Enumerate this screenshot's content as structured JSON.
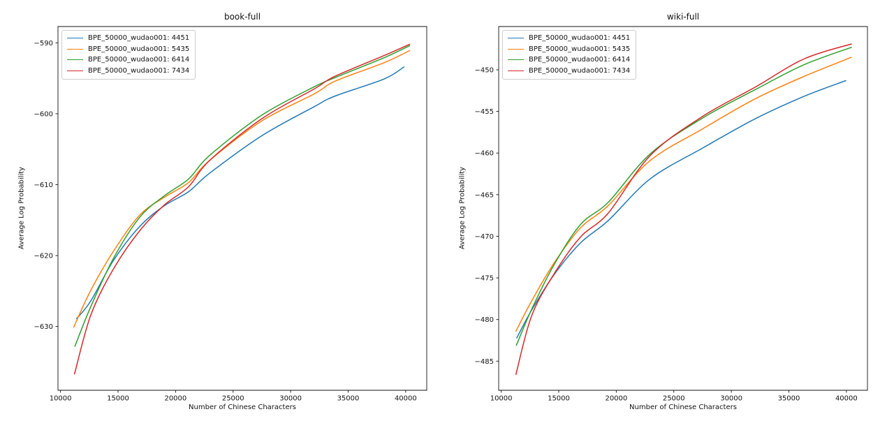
{
  "figure": {
    "background": "#ffffff"
  },
  "chart_data": [
    {
      "type": "line",
      "title": "book-full",
      "xlabel": "Number of Chinese Characters",
      "ylabel": "Average Log Probability",
      "xlim": [
        9780,
        41830
      ],
      "ylim": [
        -639.0,
        -587.7
      ],
      "xticks": [
        10000,
        15000,
        20000,
        25000,
        30000,
        35000,
        40000
      ],
      "yticks": [
        -590,
        -600,
        -610,
        -620,
        -630
      ],
      "grid": false,
      "legend_position": "upper left",
      "series": [
        {
          "name": "BPE_50000_wudao001: 4451",
          "color": "#1f77b4",
          "x": [
            11400,
            12633,
            14600,
            16881,
            19000,
            21129,
            22949,
            27500,
            32051,
            33871,
            38119,
            39850
          ],
          "y": [
            -628.9,
            -626.4,
            -620.7,
            -615.9,
            -613.0,
            -611.0,
            -608.4,
            -603.1,
            -599.0,
            -597.5,
            -595.1,
            -593.4
          ]
        },
        {
          "name": "BPE_50000_wudao001: 5435",
          "color": "#ff7f0e",
          "x": [
            11150,
            12633,
            14600,
            16881,
            19000,
            21129,
            22949,
            27500,
            32051,
            33871,
            38119,
            40345
          ],
          "y": [
            -630.1,
            -624.9,
            -619.4,
            -614.3,
            -611.8,
            -609.7,
            -606.6,
            -601.0,
            -597.2,
            -595.4,
            -592.8,
            -591.1
          ]
        },
        {
          "name": "BPE_50000_wudao001: 6414",
          "color": "#2ca02c",
          "x": [
            11250,
            12633,
            14600,
            16881,
            19000,
            21129,
            22949,
            27500,
            32051,
            33871,
            38119,
            40345
          ],
          "y": [
            -632.8,
            -627.2,
            -620.4,
            -614.6,
            -611.6,
            -609.2,
            -605.9,
            -600.2,
            -596.2,
            -594.9,
            -592.1,
            -590.4
          ]
        },
        {
          "name": "BPE_50000_wudao001: 7434",
          "color": "#d62728",
          "x": [
            11220,
            12633,
            14600,
            16881,
            19000,
            21129,
            22949,
            27500,
            32051,
            33871,
            38119,
            40345
          ],
          "y": [
            -636.7,
            -628.4,
            -621.9,
            -616.5,
            -612.9,
            -610.3,
            -606.6,
            -600.7,
            -596.5,
            -594.7,
            -591.8,
            -590.2
          ]
        }
      ]
    },
    {
      "type": "line",
      "title": "wiki-full",
      "xlabel": "Number of Chinese Characters",
      "ylabel": "Average Log Probability",
      "xlim": [
        9780,
        41830
      ],
      "ylim": [
        -488.5,
        -444.8
      ],
      "xticks": [
        10000,
        15000,
        20000,
        25000,
        30000,
        35000,
        40000
      ],
      "yticks": [
        -450,
        -455,
        -460,
        -465,
        -470,
        -475,
        -480,
        -485
      ],
      "grid": false,
      "legend_position": "upper left",
      "series": [
        {
          "name": "BPE_50000_wudao001: 4451",
          "color": "#1f77b4",
          "x": [
            11360,
            12633,
            14600,
            16881,
            19308,
            22949,
            27500,
            32051,
            36300,
            39940
          ],
          "y": [
            -482.2,
            -478.9,
            -474.6,
            -470.8,
            -468.1,
            -463.1,
            -459.4,
            -455.9,
            -453.2,
            -451.3
          ]
        },
        {
          "name": "BPE_50000_wudao001: 5435",
          "color": "#ff7f0e",
          "x": [
            11280,
            12633,
            14600,
            16881,
            19308,
            22949,
            27500,
            32051,
            36300,
            40425
          ],
          "y": [
            -481.4,
            -477.8,
            -473.2,
            -469.0,
            -466.3,
            -460.9,
            -457.1,
            -453.5,
            -450.8,
            -448.5
          ]
        },
        {
          "name": "BPE_50000_wudao001: 6414",
          "color": "#2ca02c",
          "x": [
            11317,
            12633,
            14600,
            16881,
            19308,
            22949,
            27500,
            32051,
            36300,
            40425
          ],
          "y": [
            -483.1,
            -478.8,
            -473.4,
            -468.6,
            -465.9,
            -460.1,
            -455.8,
            -452.4,
            -449.4,
            -447.3
          ]
        },
        {
          "name": "BPE_50000_wudao001: 7434",
          "color": "#d62728",
          "x": [
            11280,
            12633,
            14600,
            16881,
            19308,
            22949,
            27500,
            32051,
            36300,
            40425
          ],
          "y": [
            -486.6,
            -479.6,
            -474.5,
            -470.1,
            -467.2,
            -460.3,
            -455.6,
            -452.1,
            -448.7,
            -446.9
          ]
        }
      ]
    }
  ]
}
